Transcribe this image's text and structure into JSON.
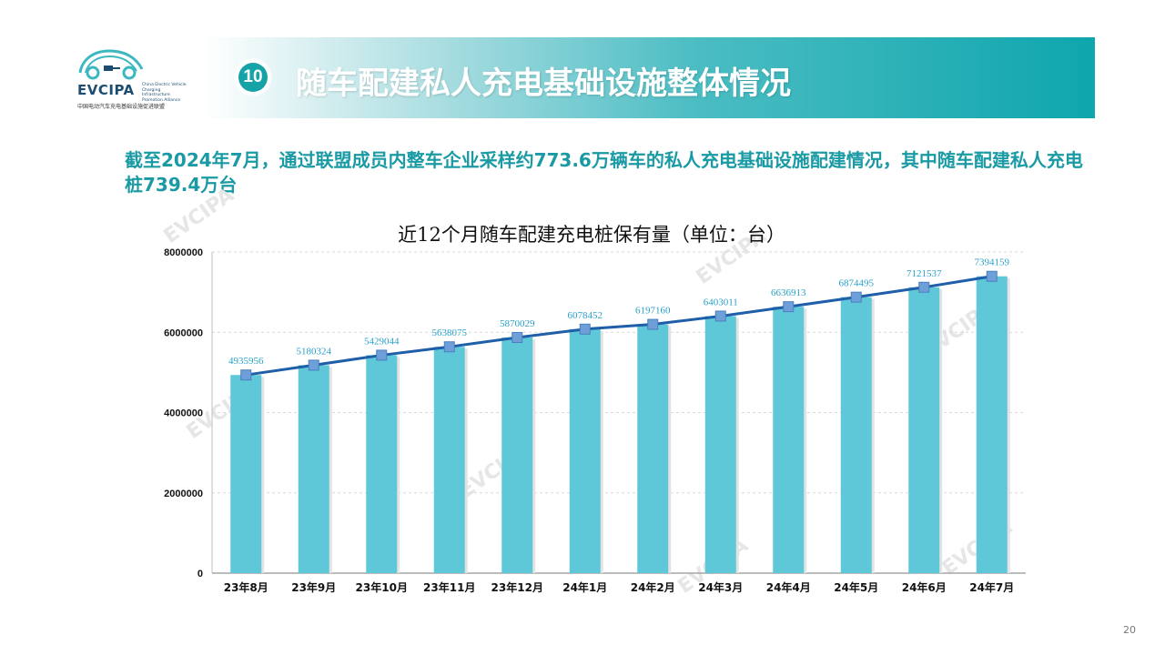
{
  "logo": {
    "name": "EVCIPA",
    "subtitle": "China Electric Vehicle Charging Infrastructure Promotion Alliance",
    "cn_name": "中国电动汽车充电基础设施促进联盟"
  },
  "header": {
    "badge_number": "10",
    "title": "随车配建私人充电基础设施整体情况"
  },
  "intro_text": "截至2024年7月，通过联盟成员内整车企业采样约773.6万辆车的私人充电基础设施配建情况，其中随车配建私人充电桩739.4万台",
  "page_number": "20",
  "colors": {
    "bar": "#5fc8d8",
    "line": "#1f5ea8",
    "marker": "#6f9fd8",
    "label": "#2aa0c8",
    "accent": "#1a9aa4"
  },
  "chart_data": {
    "type": "bar",
    "title": "近12个月随车配建充电桩保有量（单位：台）",
    "categories": [
      "23年8月",
      "23年9月",
      "23年10月",
      "23年11月",
      "23年12月",
      "24年1月",
      "24年2月",
      "24年3月",
      "24年4月",
      "24年5月",
      "24年6月",
      "24年7月"
    ],
    "values": [
      4935956,
      5180324,
      5429044,
      5638075,
      5870029,
      6078452,
      6197160,
      6403011,
      6636913,
      6874495,
      7121537,
      7394159
    ],
    "overlay": "line",
    "ylim": [
      0,
      8000000
    ],
    "yticks": [
      "0",
      "2000000",
      "4000000",
      "6000000",
      "8000000"
    ],
    "ytick_values": [
      0,
      2000000,
      4000000,
      6000000,
      8000000
    ],
    "grid": true,
    "xlabel": "",
    "ylabel": ""
  }
}
